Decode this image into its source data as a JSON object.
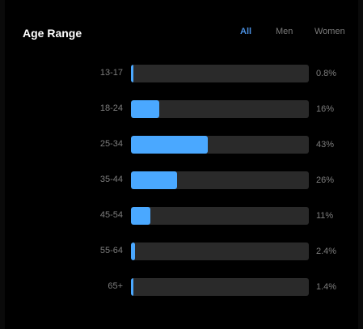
{
  "header": {
    "title": "Age Range",
    "tabs": [
      {
        "label": "All",
        "active": true
      },
      {
        "label": "Men",
        "active": false
      },
      {
        "label": "Women",
        "active": false
      }
    ]
  },
  "colors": {
    "accent": "#4aa8ff",
    "active_tab": "#4a8fe0",
    "track": "#2a2a2a",
    "background": "#000000"
  },
  "rows": [
    {
      "label": "13-17",
      "value_text": "0.8%",
      "value": 0.8
    },
    {
      "label": "18-24",
      "value_text": "16%",
      "value": 16
    },
    {
      "label": "25-34",
      "value_text": "43%",
      "value": 43
    },
    {
      "label": "35-44",
      "value_text": "26%",
      "value": 26
    },
    {
      "label": "45-54",
      "value_text": "11%",
      "value": 11
    },
    {
      "label": "55-64",
      "value_text": "2.4%",
      "value": 2.4
    },
    {
      "label": "65+",
      "value_text": "1.4%",
      "value": 1.4
    }
  ]
}
